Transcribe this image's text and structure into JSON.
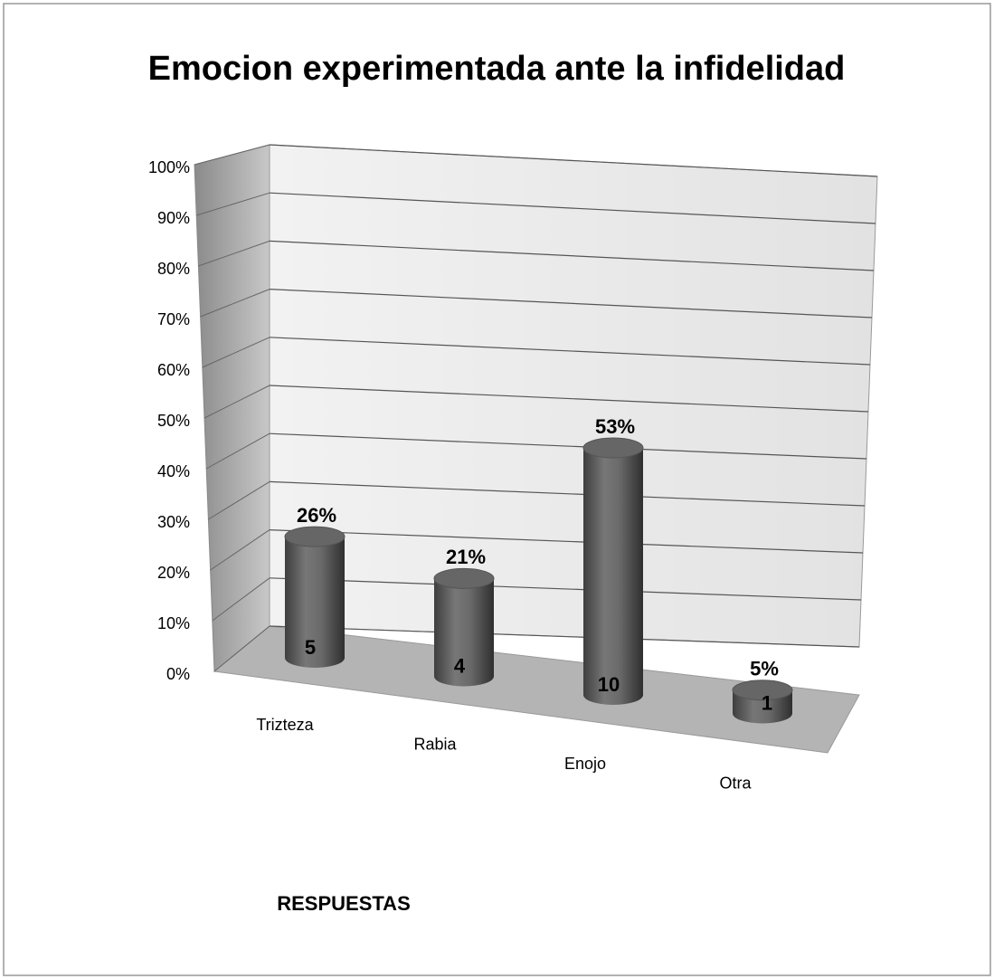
{
  "chart_data": {
    "type": "bar3d",
    "title": "Emocion experimentada ante la infidelidad",
    "x_label": "RESPUESTAS",
    "categories": [
      "Trizteza",
      "Rabia",
      "Enojo",
      "Otra"
    ],
    "values": [
      26,
      21,
      53,
      5
    ],
    "value_labels": [
      "26%",
      "21%",
      "53%",
      "5%"
    ],
    "counts": [
      5,
      4,
      10,
      1
    ],
    "color": "#666666",
    "ylim": [
      0,
      100
    ],
    "yticks": [
      {
        "value": 0,
        "label": "0%"
      },
      {
        "value": 10,
        "label": "10%"
      },
      {
        "value": 20,
        "label": "20%"
      },
      {
        "value": 30,
        "label": "30%"
      },
      {
        "value": 40,
        "label": "40%"
      },
      {
        "value": 50,
        "label": "50%"
      },
      {
        "value": 60,
        "label": "60%"
      },
      {
        "value": 70,
        "label": "70%"
      },
      {
        "value": 80,
        "label": "80%"
      },
      {
        "value": 90,
        "label": "90%"
      },
      {
        "value": 100,
        "label": "100%"
      }
    ],
    "grid": true
  }
}
